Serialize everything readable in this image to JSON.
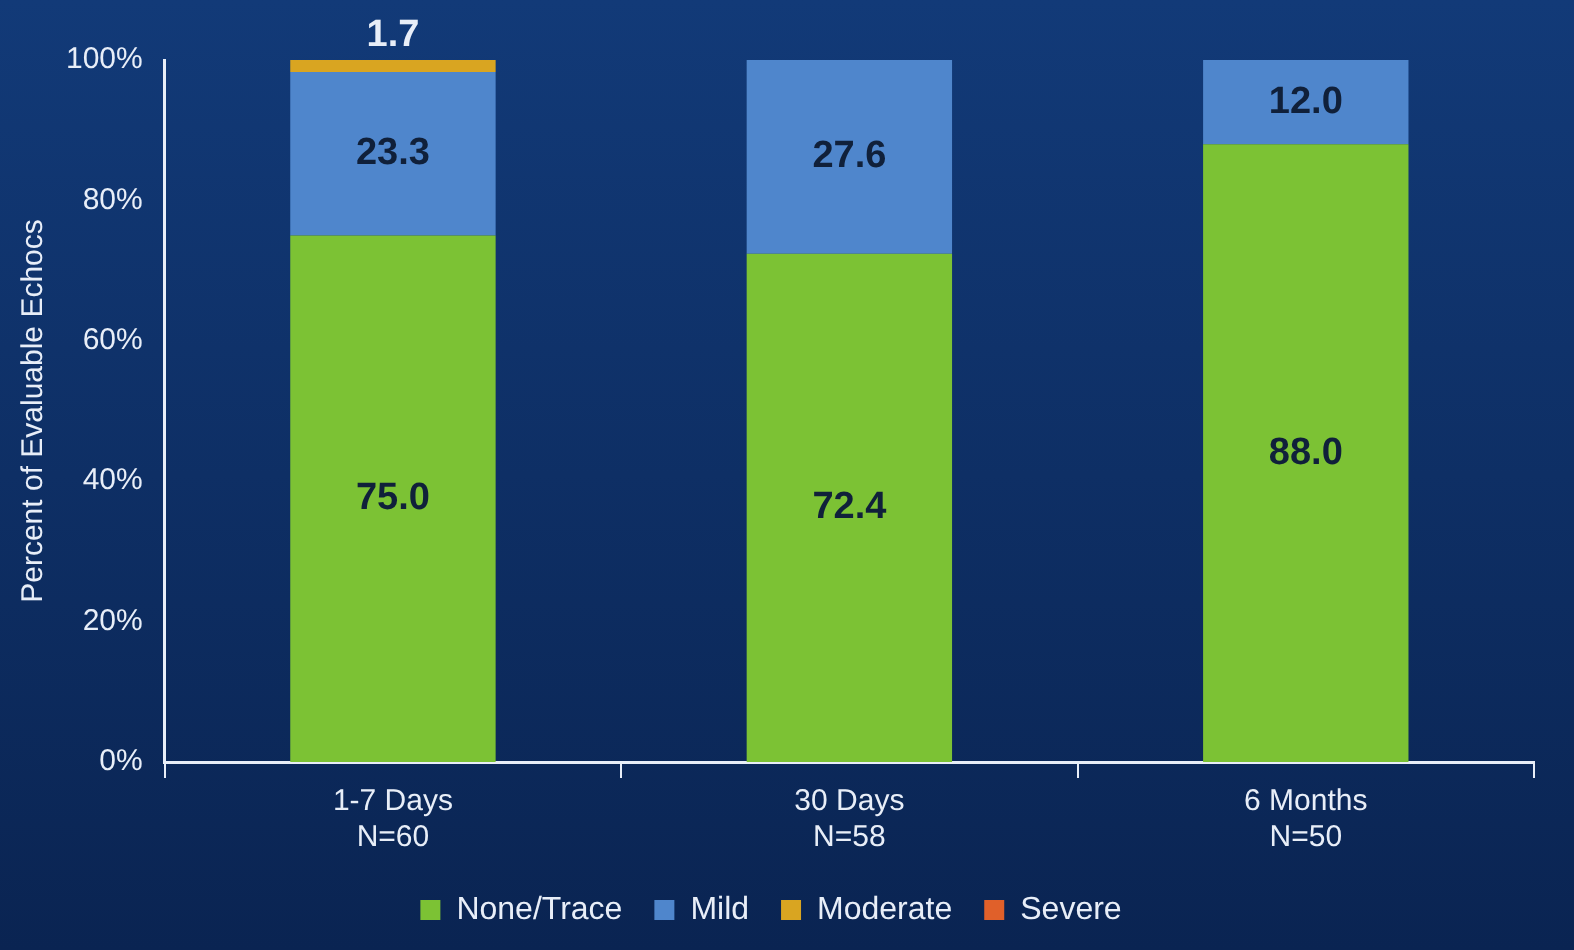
{
  "chart_data": {
    "type": "bar",
    "stacked": true,
    "ylabel": "Percent of Evaluable Echocs",
    "categories": [
      "1-7 Days\nN=60",
      "30 Days\nN=58",
      "6 Months\nN=50"
    ],
    "series": [
      {
        "name": "None/Trace",
        "color": "#7cc234",
        "values": [
          75.0,
          72.4,
          88.0
        ],
        "value_labels": [
          "75.0",
          "72.4",
          "88.0"
        ]
      },
      {
        "name": "Mild",
        "color": "#4f86cc",
        "values": [
          23.3,
          27.6,
          12.0
        ],
        "value_labels": [
          "23.3",
          "27.6",
          "12.0"
        ]
      },
      {
        "name": "Moderate",
        "color": "#d9a521",
        "values": [
          1.7,
          0,
          0
        ],
        "value_labels": [
          "1.7",
          null,
          null
        ]
      },
      {
        "name": "Severe",
        "color": "#e0602a",
        "values": [
          0,
          0,
          0
        ]
      }
    ],
    "ylim": [
      0,
      100
    ],
    "yticks": [
      {
        "value": 0,
        "label": "0%"
      },
      {
        "value": 20,
        "label": "20%"
      },
      {
        "value": 40,
        "label": "40%"
      },
      {
        "value": 60,
        "label": "60%"
      },
      {
        "value": 80,
        "label": "80%"
      },
      {
        "value": 100,
        "label": "100%"
      }
    ],
    "grid": false,
    "legend": "bottom"
  }
}
